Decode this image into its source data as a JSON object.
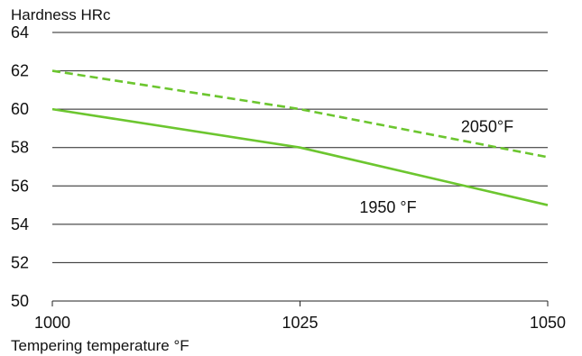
{
  "chart_data": {
    "type": "line",
    "ylabel": "Hardness HRc",
    "xlabel": "Tempering temperature °F",
    "x": [
      1000,
      1025,
      1050
    ],
    "xticks": [
      "1000",
      "1025",
      "1050"
    ],
    "xlim": [
      1000,
      1050
    ],
    "ylim": [
      50,
      64
    ],
    "yticks": [
      "50",
      "52",
      "54",
      "56",
      "58",
      "60",
      "62",
      "64"
    ],
    "grid": "horizontal",
    "series": [
      {
        "name": "2050°F",
        "values": [
          62,
          60,
          57.5
        ],
        "style": "dashed",
        "color": "#6cc62f"
      },
      {
        "name": "1950 °F",
        "values": [
          60,
          58,
          55
        ],
        "style": "solid",
        "color": "#6cc62f"
      }
    ]
  }
}
